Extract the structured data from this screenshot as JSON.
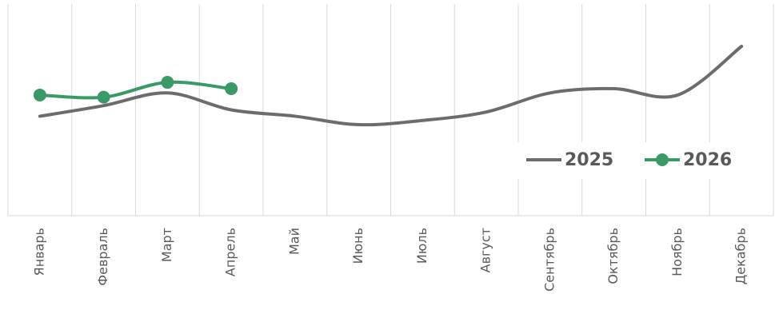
{
  "chart_data": {
    "type": "line",
    "categories": [
      "Январь",
      "Февраль",
      "Март",
      "Апрель",
      "Май",
      "Июнь",
      "Июль",
      "Август",
      "Сентябрь",
      "Октябрь",
      "Ноябрь",
      "Декабрь"
    ],
    "series": [
      {
        "name": "2025",
        "color": "#6f6b6b",
        "markers": false,
        "values": [
          47,
          52,
          58,
          50,
          47,
          43,
          45,
          49,
          58,
          60,
          57,
          80
        ]
      },
      {
        "name": "2026",
        "color": "#3a9a66",
        "markers": true,
        "values": [
          57,
          56,
          63,
          60,
          null,
          null,
          null,
          null,
          null,
          null,
          null,
          null
        ]
      }
    ],
    "ylim": [
      0,
      100
    ],
    "smooth": true,
    "legend": "right"
  }
}
